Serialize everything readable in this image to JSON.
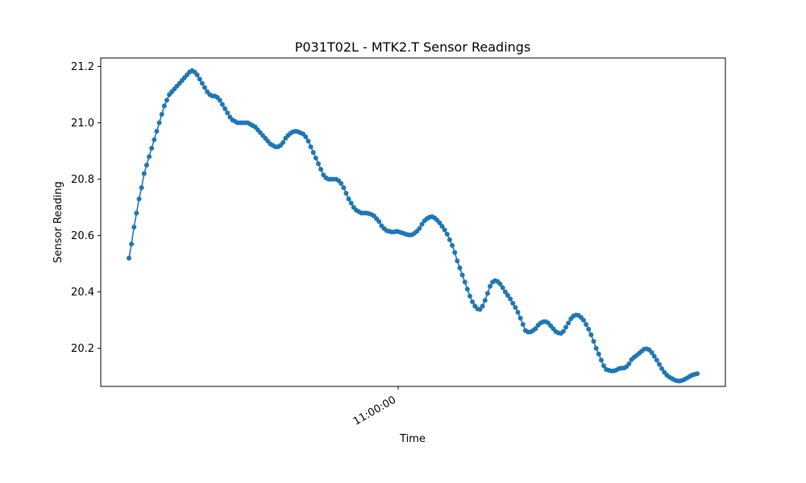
{
  "chart_data": {
    "type": "line",
    "title": "P031T02L - MTK2.T Sensor Readings",
    "xlabel": "Time",
    "ylabel": "Sensor Reading",
    "x_ticks": [
      "11:00:00"
    ],
    "y_ticks": [
      "20.2",
      "20.4",
      "20.6",
      "20.8",
      "21.0",
      "21.2"
    ],
    "ylim": [
      20.065,
      21.23
    ],
    "grid": false,
    "series_color": "#1f77b4",
    "marker": "circle",
    "series": [
      {
        "values": [
          20.52,
          20.57,
          20.63,
          20.68,
          20.73,
          20.77,
          20.82,
          20.85,
          20.88,
          20.91,
          20.94,
          20.97,
          21.0,
          21.03,
          21.06,
          21.08,
          21.1,
          21.11,
          21.12,
          21.13,
          21.14,
          21.15,
          21.16,
          21.17,
          21.18,
          21.185,
          21.18,
          21.17,
          21.155,
          21.14,
          21.125,
          21.11,
          21.1,
          21.095,
          21.095,
          21.09,
          21.08,
          21.065,
          21.05,
          21.035,
          21.02,
          21.01,
          21.005,
          21.0,
          21.0,
          21.0,
          21.0,
          21.0,
          20.995,
          20.99,
          20.985,
          20.975,
          20.965,
          20.955,
          20.945,
          20.935,
          20.925,
          20.92,
          20.915,
          20.915,
          20.92,
          20.93,
          20.945,
          20.955,
          20.963,
          20.968,
          20.97,
          20.968,
          20.964,
          20.96,
          20.95,
          20.935,
          20.915,
          20.895,
          20.875,
          20.855,
          20.835,
          20.815,
          20.805,
          20.8,
          20.8,
          20.8,
          20.8,
          20.795,
          20.785,
          20.77,
          20.75,
          20.73,
          20.715,
          20.7,
          20.69,
          20.685,
          20.68,
          20.68,
          20.68,
          20.678,
          20.675,
          20.67,
          20.66,
          20.65,
          20.635,
          20.625,
          20.618,
          20.615,
          20.613,
          20.613,
          20.615,
          20.613,
          20.61,
          20.607,
          20.604,
          20.602,
          20.603,
          20.608,
          20.615,
          20.625,
          20.64,
          20.652,
          20.66,
          20.665,
          20.667,
          20.663,
          20.655,
          20.645,
          20.633,
          20.62,
          20.605,
          20.585,
          20.565,
          20.54,
          20.51,
          20.485,
          20.46,
          20.435,
          20.41,
          20.385,
          20.365,
          20.35,
          20.34,
          20.338,
          20.35,
          20.37,
          20.395,
          20.42,
          20.435,
          20.44,
          20.437,
          20.428,
          20.415,
          20.4,
          20.388,
          20.375,
          20.36,
          20.345,
          20.328,
          20.307,
          20.285,
          20.263,
          20.258,
          20.258,
          20.263,
          20.27,
          20.282,
          20.29,
          20.294,
          20.295,
          20.29,
          20.28,
          20.27,
          20.26,
          20.255,
          20.253,
          20.26,
          20.275,
          20.29,
          20.305,
          20.315,
          20.318,
          20.317,
          20.31,
          20.3,
          20.285,
          20.268,
          20.248,
          20.225,
          20.2,
          20.18,
          20.158,
          20.138,
          20.125,
          20.122,
          20.12,
          20.12,
          20.123,
          20.128,
          20.13,
          20.13,
          20.135,
          20.145,
          20.16,
          20.168,
          20.175,
          20.182,
          20.19,
          20.197,
          20.198,
          20.195,
          20.185,
          20.172,
          20.158,
          20.143,
          20.128,
          20.115,
          20.105,
          20.098,
          20.093,
          20.088,
          20.085,
          20.084,
          20.086,
          20.09,
          20.095,
          20.1,
          20.105,
          20.108,
          20.11
        ]
      }
    ]
  }
}
